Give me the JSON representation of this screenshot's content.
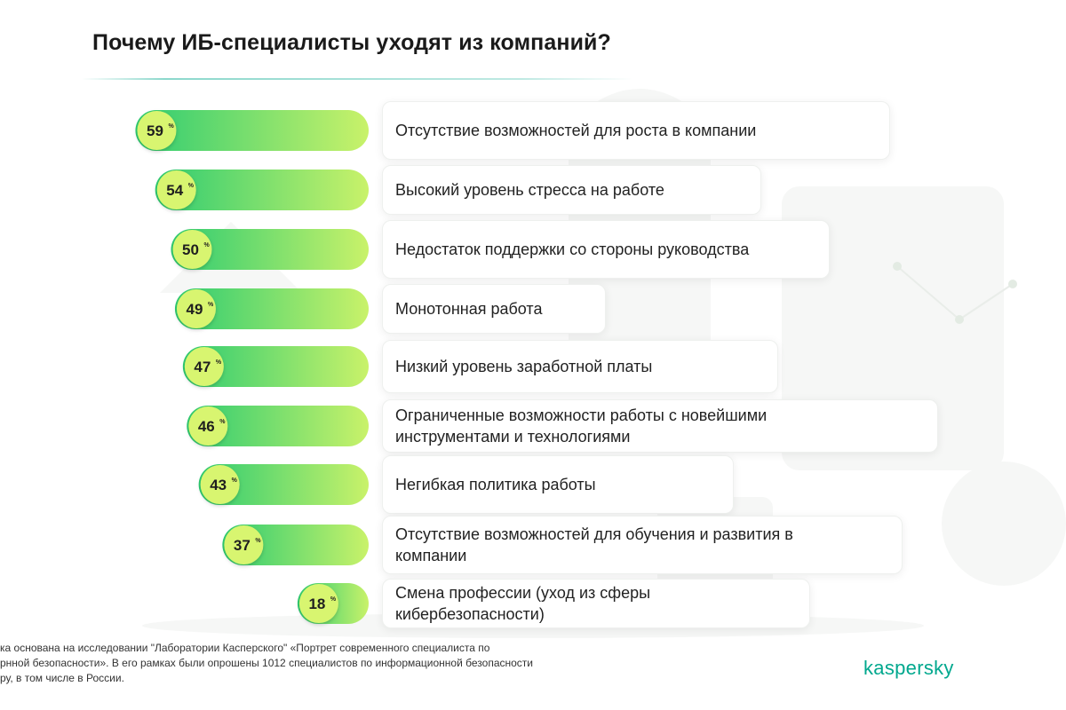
{
  "title": "Почему ИБ-специалисты уходят из компаний?",
  "colors": {
    "bar_start": "#2ecc71",
    "bar_end": "#c9f26a",
    "value_bubble": "#d8f56f",
    "accent": "#00a88e"
  },
  "chart_data": {
    "type": "bar",
    "orientation": "horizontal",
    "unit": "%",
    "categories": [
      "Отсутствие возможностей для роста в компании",
      "Высокий уровень стресса на работе",
      "Недостаток поддержки со стороны руководства",
      "Монотонная работа",
      "Низкий уровень заработной платы",
      "Ограниченные возможности работы с новейшими инструментами и технологиями",
      "Негибкая политика работы",
      "Отсутствие возможностей для обучения и развития в компании",
      "Смена профессии (уход из сферы кибербезопасности)"
    ],
    "values": [
      59,
      54,
      50,
      49,
      47,
      46,
      43,
      37,
      18
    ],
    "label_lines": [
      [
        "Отсутствие возможностей для роста в компании"
      ],
      [
        "Высокий уровень стресса на работе"
      ],
      [
        "Недостаток поддержки со стороны руководства"
      ],
      [
        "Монотонная работа"
      ],
      [
        "Низкий уровень заработной платы"
      ],
      [
        "Ограниченные возможности работы с новейшими",
        "инструментами и технологиями"
      ],
      [
        "Негибкая политика работы"
      ],
      [
        "Отсутствие возможностей для обучения и развития в",
        "компании"
      ],
      [
        "Смена профессии (уход из сферы",
        "кибербезопасности)"
      ]
    ]
  },
  "footnote": [
    "ка основана на исследовании \"Лаборатории Касперского\" «Портрет современного специалиста по",
    "рнной безопасности». В его рамках были опрошены 1012 специалистов по информационной безопасности",
    "ру, в том числе в России."
  ],
  "brand": "kaspersky"
}
